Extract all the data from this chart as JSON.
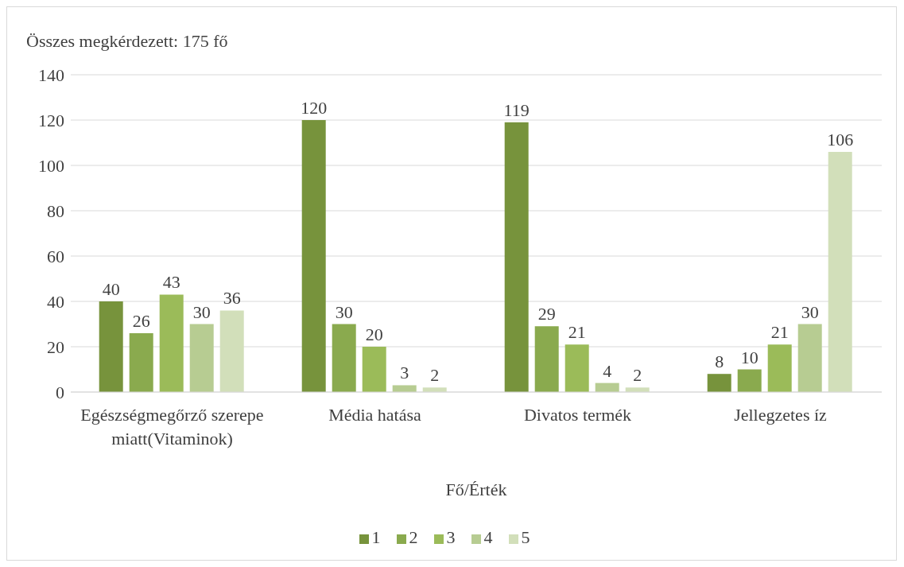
{
  "chart_data": {
    "type": "bar",
    "title": "Összes megkérdezett: 175 fő",
    "xlabel": "Fő/Érték",
    "categories": [
      "Egészségmegőrző szerepe miatt(Vitaminok)",
      "Média hatása",
      "Divatos termék",
      "Jellegzetes íz"
    ],
    "series": [
      {
        "name": "1",
        "color": "#77933c",
        "values": [
          40,
          120,
          119,
          8
        ]
      },
      {
        "name": "2",
        "color": "#8aaa4e",
        "values": [
          26,
          30,
          29,
          10
        ]
      },
      {
        "name": "3",
        "color": "#9bbb59",
        "values": [
          43,
          20,
          21,
          21
        ]
      },
      {
        "name": "4",
        "color": "#b7cc92",
        "values": [
          30,
          3,
          4,
          30
        ]
      },
      {
        "name": "5",
        "color": "#d2dfba",
        "values": [
          36,
          2,
          2,
          106
        ]
      }
    ],
    "ylim": [
      0,
      140
    ],
    "yticks": [
      0,
      20,
      40,
      60,
      80,
      100,
      120,
      140
    ],
    "grid": "y",
    "legend": "bottom",
    "data_labels": true
  }
}
